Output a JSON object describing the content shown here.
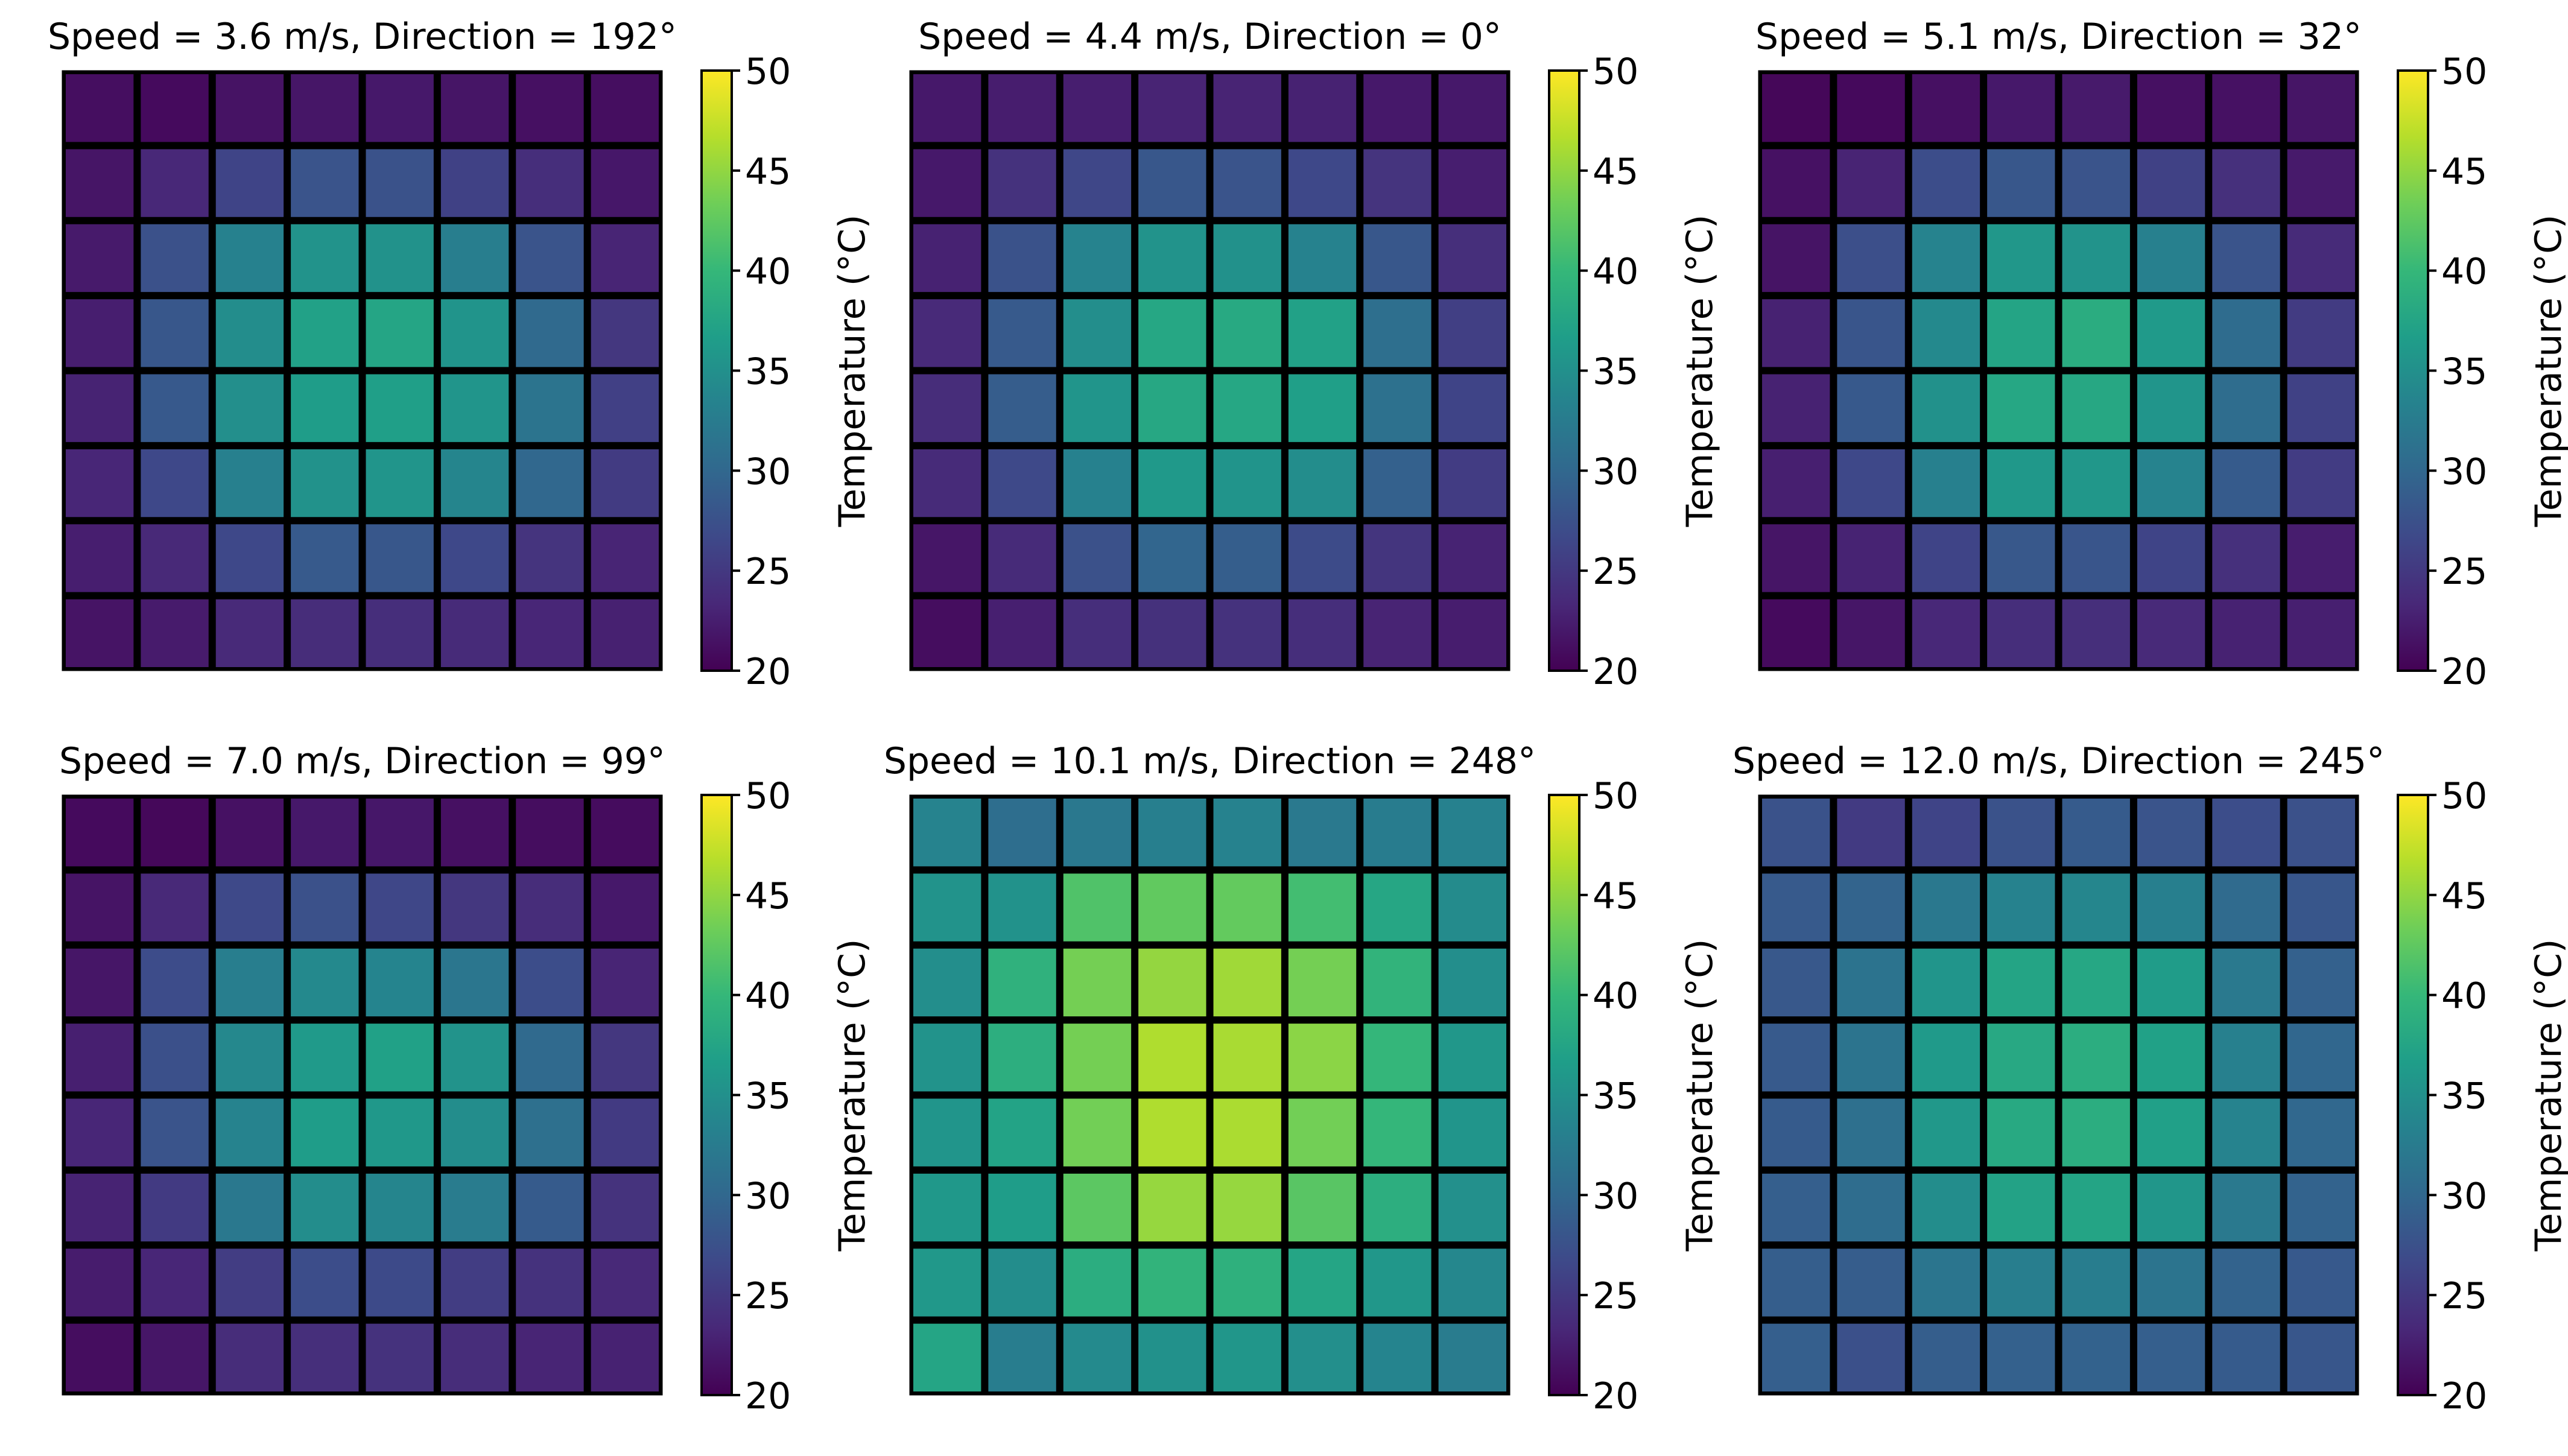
{
  "figure": {
    "colormap": "viridis",
    "colormap_stops": [
      "#440154",
      "#482878",
      "#3e4989",
      "#31688e",
      "#26828e",
      "#1f9e89",
      "#35b779",
      "#6ece58",
      "#b5de2b",
      "#fde725"
    ],
    "cell_border_color": "#000000"
  },
  "chart_data": [
    {
      "type": "heatmap",
      "title": "Speed = 3.6 m/s, Direction = 192°",
      "colorbar_label": "Temperature (°C)",
      "vmin": 20,
      "vmax": 50,
      "colorbar_ticks": [
        20,
        25,
        30,
        35,
        40,
        45,
        50
      ],
      "grid": [
        [
          21.1,
          20.8,
          21.5,
          21.8,
          22.0,
          21.7,
          21.3,
          21.1
        ],
        [
          21.7,
          23.3,
          26.2,
          27.8,
          27.6,
          25.9,
          23.9,
          21.9
        ],
        [
          22.1,
          27.5,
          33.2,
          35.4,
          35.2,
          32.8,
          27.8,
          23.1
        ],
        [
          22.5,
          28.2,
          34.6,
          37.1,
          37.6,
          35.5,
          30.2,
          24.8
        ],
        [
          22.9,
          28.4,
          34.9,
          36.6,
          36.8,
          35.6,
          31.5,
          25.8
        ],
        [
          23.2,
          26.6,
          33.1,
          35.2,
          35.6,
          33.7,
          30.0,
          25.3
        ],
        [
          22.5,
          23.4,
          26.6,
          28.5,
          28.2,
          26.6,
          24.5,
          23.1
        ],
        [
          21.6,
          22.2,
          23.5,
          23.8,
          23.9,
          23.6,
          23.2,
          22.7
        ]
      ]
    },
    {
      "type": "heatmap",
      "title": "Speed = 4.4 m/s, Direction = 0°",
      "colorbar_label": "Temperature (°C)",
      "vmin": 20,
      "vmax": 50,
      "colorbar_ticks": [
        20,
        25,
        30,
        35,
        40,
        45,
        50
      ],
      "grid": [
        [
          22.0,
          22.4,
          22.5,
          23.0,
          23.0,
          22.8,
          22.0,
          22.0
        ],
        [
          22.0,
          24.3,
          26.5,
          28.2,
          27.8,
          26.6,
          24.5,
          22.5
        ],
        [
          22.8,
          27.6,
          33.5,
          35.4,
          35.1,
          33.3,
          28.2,
          24.0
        ],
        [
          23.5,
          28.5,
          34.8,
          37.8,
          38.1,
          37.1,
          30.9,
          25.7
        ],
        [
          23.8,
          28.8,
          35.6,
          37.9,
          37.8,
          36.8,
          31.2,
          26.2
        ],
        [
          23.6,
          26.7,
          33.2,
          36.1,
          35.5,
          34.6,
          29.2,
          25.4
        ],
        [
          21.8,
          23.6,
          27.5,
          29.8,
          28.9,
          26.9,
          24.6,
          22.9
        ],
        [
          21.0,
          22.6,
          23.9,
          24.2,
          24.3,
          23.9,
          23.0,
          22.4
        ]
      ]
    },
    {
      "type": "heatmap",
      "title": "Speed = 5.1 m/s, Direction = 32°",
      "colorbar_label": "Temperature (°C)",
      "vmin": 20,
      "vmax": 50,
      "colorbar_ticks": [
        20,
        25,
        30,
        35,
        40,
        45,
        50
      ],
      "grid": [
        [
          20.5,
          20.7,
          21.3,
          22.0,
          22.1,
          21.3,
          21.4,
          21.7
        ],
        [
          21.4,
          23.0,
          27.1,
          28.2,
          27.8,
          25.9,
          24.1,
          22.1
        ],
        [
          21.6,
          27.3,
          33.5,
          35.8,
          35.4,
          33.1,
          27.8,
          23.6
        ],
        [
          22.8,
          28.0,
          34.2,
          37.4,
          38.5,
          36.2,
          30.5,
          25.3
        ],
        [
          22.8,
          28.4,
          35.1,
          37.8,
          37.9,
          35.6,
          30.7,
          25.9
        ],
        [
          22.6,
          26.6,
          33.1,
          36.0,
          35.8,
          33.5,
          28.6,
          25.4
        ],
        [
          21.7,
          22.9,
          26.2,
          28.3,
          28.0,
          26.2,
          24.1,
          22.4
        ],
        [
          20.8,
          21.8,
          23.3,
          23.9,
          24.0,
          23.5,
          22.8,
          22.6
        ]
      ]
    },
    {
      "type": "heatmap",
      "title": "Speed = 7.0 m/s, Direction = 99°",
      "colorbar_label": "Temperature (°C)",
      "vmin": 20,
      "vmax": 50,
      "colorbar_ticks": [
        20,
        25,
        30,
        35,
        40,
        45,
        50
      ],
      "grid": [
        [
          20.8,
          20.6,
          21.4,
          22.0,
          21.9,
          21.3,
          21.0,
          20.9
        ],
        [
          21.6,
          23.4,
          26.7,
          27.5,
          26.5,
          24.8,
          23.8,
          22.0
        ],
        [
          21.8,
          27.0,
          32.8,
          34.2,
          33.6,
          31.8,
          27.1,
          23.1
        ],
        [
          22.6,
          27.4,
          34.0,
          36.2,
          37.0,
          35.4,
          30.2,
          24.8
        ],
        [
          23.2,
          27.8,
          33.5,
          36.6,
          36.0,
          34.6,
          31.0,
          25.2
        ],
        [
          22.9,
          25.2,
          32.1,
          34.7,
          33.7,
          32.5,
          28.6,
          24.4
        ],
        [
          22.3,
          23.2,
          25.5,
          27.1,
          26.8,
          25.5,
          24.3,
          23.4
        ],
        [
          21.0,
          21.8,
          23.8,
          24.0,
          24.3,
          23.8,
          23.1,
          22.8
        ]
      ]
    },
    {
      "type": "heatmap",
      "title": "Speed = 10.1 m/s, Direction = 248°",
      "colorbar_label": "Temperature (°C)",
      "vmin": 20,
      "vmax": 50,
      "colorbar_ticks": [
        20,
        25,
        30,
        35,
        40,
        45,
        50
      ],
      "grid": [
        [
          33.5,
          30.8,
          32.0,
          33.0,
          33.3,
          32.2,
          32.6,
          33.2
        ],
        [
          35.3,
          35.2,
          41.6,
          42.6,
          42.7,
          40.8,
          37.7,
          34.4
        ],
        [
          34.8,
          39.2,
          43.6,
          45.1,
          45.7,
          43.6,
          39.5,
          34.8
        ],
        [
          35.3,
          38.8,
          43.6,
          46.4,
          46.1,
          44.7,
          39.8,
          35.8
        ],
        [
          35.6,
          37.3,
          43.5,
          46.4,
          46.2,
          43.5,
          39.8,
          35.6
        ],
        [
          36.0,
          36.5,
          42.3,
          45.2,
          45.2,
          42.1,
          38.8,
          35.0
        ],
        [
          35.9,
          34.6,
          38.6,
          39.5,
          39.1,
          37.6,
          35.8,
          33.9
        ],
        [
          37.6,
          32.7,
          34.3,
          35.1,
          35.7,
          34.9,
          33.6,
          32.5
        ]
      ]
    },
    {
      "type": "heatmap",
      "title": "Speed = 12.0 m/s, Direction = 245°",
      "colorbar_label": "Temperature (°C)",
      "vmin": 20,
      "vmax": 50,
      "colorbar_ticks": [
        20,
        25,
        30,
        35,
        40,
        45,
        50
      ],
      "grid": [
        [
          27.6,
          25.2,
          26.2,
          27.6,
          28.6,
          27.8,
          27.1,
          27.5
        ],
        [
          28.5,
          29.6,
          32.0,
          33.3,
          33.8,
          33.0,
          30.4,
          28.1
        ],
        [
          28.3,
          31.4,
          35.6,
          37.4,
          37.8,
          36.4,
          32.2,
          29.3
        ],
        [
          28.5,
          31.5,
          36.2,
          38.0,
          38.6,
          37.0,
          33.1,
          29.9
        ],
        [
          28.6,
          31.0,
          35.9,
          38.1,
          38.6,
          36.9,
          33.4,
          30.0
        ],
        [
          29.0,
          30.6,
          34.7,
          37.2,
          37.4,
          35.7,
          32.2,
          29.5
        ],
        [
          28.9,
          28.8,
          31.7,
          32.8,
          32.7,
          31.5,
          29.5,
          28.4
        ],
        [
          29.0,
          27.4,
          28.9,
          29.3,
          29.4,
          29.0,
          28.6,
          28.1
        ]
      ]
    }
  ]
}
